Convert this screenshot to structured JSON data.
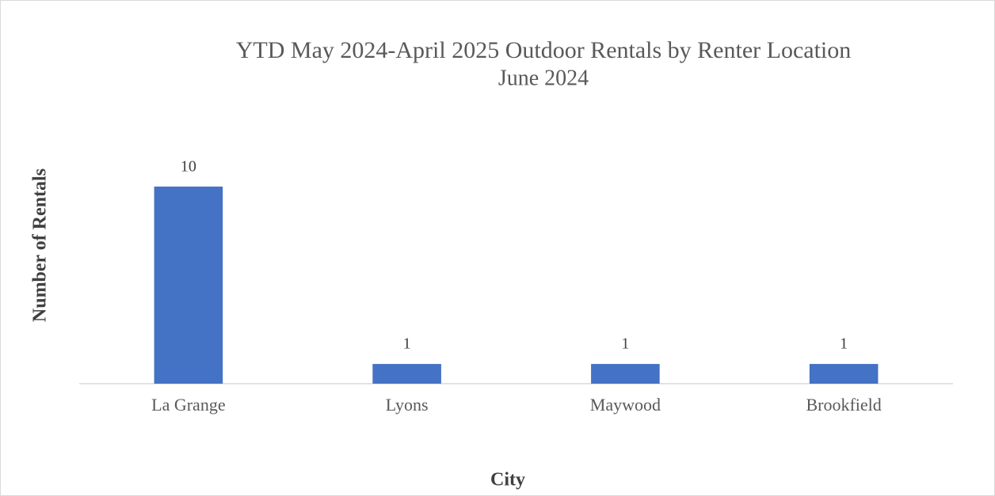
{
  "chart_data": {
    "type": "bar",
    "title": "YTD May 2024-April 2025 Outdoor Rentals by Renter Location",
    "subtitle": "June 2024",
    "x_label": "City",
    "y_label": "Number of Rentals",
    "categories": [
      "La Grange",
      "Lyons",
      "Maywood",
      "Brookfield"
    ],
    "values": [
      10,
      1,
      1,
      1
    ],
    "color": "#4472c4",
    "ylim": [
      0,
      12
    ],
    "grid": false
  }
}
